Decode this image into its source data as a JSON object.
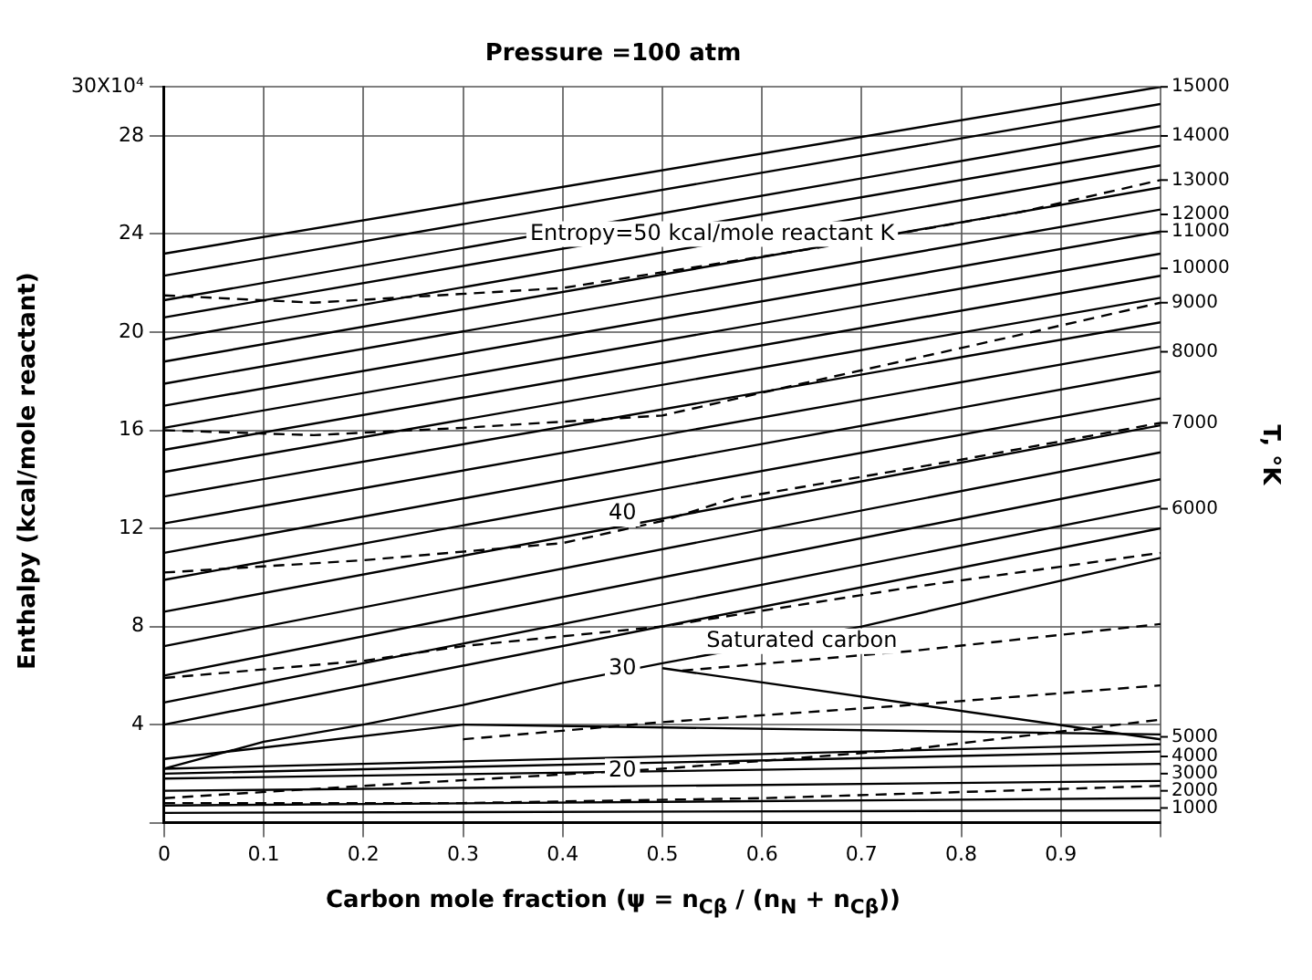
{
  "chart_data": {
    "type": "line",
    "title": "Pressure =100 atm",
    "xlabel": "Carbon mole fraction (ψ = n$_{Cβ}$ / (n$_{N}$ + n$_{Cβ}$))",
    "ylabel": "Enthalpy (kcal/mole reactant)",
    "xlim": [
      0,
      1
    ],
    "xticks": [
      0,
      0.1,
      0.2,
      0.3,
      0.4,
      0.5,
      0.6,
      0.7,
      0.8,
      0.9,
      {
        "value": 1,
        "label": null
      }
    ],
    "ylim": [
      0,
      30
    ],
    "yticks": [
      {
        "value": 0,
        "label": null
      },
      4,
      8,
      12,
      16,
      20,
      24,
      28,
      {
        "value": 30,
        "label": "30X10⁴"
      }
    ],
    "grid": true,
    "legend": false,
    "marker": "none",
    "line_style": "solid",
    "series": [
      {
        "color": "#000000",
        "x": [
          0,
          1
        ],
        "values": [
          23.2,
          30.0
        ]
      },
      {
        "color": "#000000",
        "x": [
          0,
          1
        ],
        "values": [
          22.3,
          29.3
        ]
      },
      {
        "color": "#000000",
        "x": [
          0,
          1
        ],
        "values": [
          21.3,
          28.4
        ]
      },
      {
        "color": "#000000",
        "x": [
          0,
          1
        ],
        "values": [
          20.6,
          27.6
        ]
      },
      {
        "color": "#000000",
        "x": [
          0,
          1
        ],
        "values": [
          19.7,
          26.8
        ]
      },
      {
        "color": "#000000",
        "x": [
          0,
          1
        ],
        "values": [
          18.8,
          25.9
        ]
      },
      {
        "color": "#000000",
        "x": [
          0,
          1
        ],
        "values": [
          17.9,
          25.0
        ]
      },
      {
        "color": "#000000",
        "x": [
          0,
          1
        ],
        "values": [
          17.0,
          24.1
        ]
      },
      {
        "color": "#000000",
        "x": [
          0,
          1
        ],
        "values": [
          16.1,
          23.2
        ]
      },
      {
        "color": "#000000",
        "x": [
          0,
          1
        ],
        "values": [
          15.2,
          22.3
        ]
      },
      {
        "color": "#000000",
        "x": [
          0,
          1
        ],
        "values": [
          14.3,
          21.4
        ]
      },
      {
        "color": "#000000",
        "x": [
          0,
          1
        ],
        "values": [
          13.3,
          20.4
        ]
      },
      {
        "color": "#000000",
        "x": [
          0,
          1
        ],
        "values": [
          12.2,
          19.4
        ]
      },
      {
        "color": "#000000",
        "x": [
          0,
          1
        ],
        "values": [
          11.0,
          18.4
        ]
      },
      {
        "color": "#000000",
        "x": [
          0,
          1
        ],
        "values": [
          9.9,
          17.3
        ]
      },
      {
        "color": "#000000",
        "x": [
          0,
          1
        ],
        "values": [
          8.6,
          16.2
        ]
      },
      {
        "color": "#000000",
        "x": [
          0,
          1
        ],
        "values": [
          7.2,
          15.1
        ]
      },
      {
        "color": "#000000",
        "x": [
          0,
          1
        ],
        "values": [
          6.0,
          14.0
        ]
      },
      {
        "color": "#000000",
        "x": [
          0,
          1
        ],
        "values": [
          4.9,
          12.9
        ]
      },
      {
        "color": "#000000",
        "x": [
          0,
          1
        ],
        "values": [
          4.0,
          12.0
        ]
      },
      {
        "color": "#000000",
        "x": [
          0,
          0.1,
          0.2,
          0.3,
          0.4,
          0.5,
          0.7,
          1
        ],
        "values": [
          2.2,
          3.3,
          4.0,
          4.8,
          5.7,
          6.5,
          8.0,
          10.8
        ]
      },
      {
        "color": "#000000",
        "x": [
          0.5,
          1
        ],
        "values": [
          6.3,
          3.4
        ]
      },
      {
        "color": "#000000",
        "x": [
          0,
          0.3,
          1
        ],
        "values": [
          2.6,
          4.0,
          3.6
        ]
      },
      {
        "color": "#000000",
        "x": [
          0,
          1
        ],
        "values": [
          2.2,
          3.2
        ]
      },
      {
        "color": "#000000",
        "x": [
          0,
          1
        ],
        "values": [
          2.0,
          2.9
        ]
      },
      {
        "color": "#000000",
        "x": [
          0,
          1
        ],
        "values": [
          1.8,
          2.4
        ]
      },
      {
        "color": "#000000",
        "x": [
          0,
          1
        ],
        "values": [
          1.3,
          1.7
        ]
      },
      {
        "color": "#000000",
        "x": [
          0,
          1
        ],
        "values": [
          0.7,
          1.0
        ]
      },
      {
        "color": "#000000",
        "x": [
          0,
          1
        ],
        "values": [
          0.4,
          0.5
        ]
      },
      {
        "color": "#000000",
        "line_style": "dashed",
        "x": [
          0,
          0.15,
          0.4,
          0.65,
          0.86,
          1
        ],
        "values": [
          21.5,
          21.2,
          21.8,
          23.4,
          24.9,
          26.2
        ]
      },
      {
        "color": "#000000",
        "line_style": "dashed",
        "x": [
          0,
          0.15,
          0.3,
          0.5,
          0.64,
          0.86,
          1
        ],
        "values": [
          16.0,
          15.8,
          16.1,
          16.6,
          17.9,
          19.9,
          21.2
        ]
      },
      {
        "color": "#000000",
        "line_style": "dashed",
        "x": [
          0,
          0.2,
          0.4,
          0.5,
          0.57,
          0.8,
          1
        ],
        "values": [
          10.2,
          10.7,
          11.4,
          12.3,
          13.2,
          14.8,
          16.3
        ]
      },
      {
        "color": "#000000",
        "line_style": "dashed",
        "x": [
          0,
          0.2,
          0.3,
          0.5,
          0.75,
          1
        ],
        "values": [
          5.9,
          6.6,
          7.2,
          8.0,
          9.6,
          11.0
        ]
      },
      {
        "color": "#000000",
        "line_style": "dashed",
        "x": [
          0.52,
          0.75,
          1
        ],
        "values": [
          6.2,
          7.0,
          8.1
        ]
      },
      {
        "color": "#000000",
        "line_style": "dashed",
        "x": [
          0.3,
          0.5,
          0.75,
          1
        ],
        "values": [
          3.4,
          4.1,
          4.8,
          5.6
        ]
      },
      {
        "color": "#000000",
        "line_style": "dashed",
        "x": [
          0,
          0.2,
          0.5,
          0.75,
          1
        ],
        "values": [
          1.0,
          1.5,
          2.2,
          3.0,
          4.2
        ]
      },
      {
        "color": "#000000",
        "line_style": "dashed",
        "x": [
          0,
          0.3,
          0.6,
          1
        ],
        "values": [
          0.8,
          0.8,
          1.0,
          1.5
        ]
      }
    ],
    "annotations": [
      {
        "text": "Entropy=50 kcal/mole reactant K",
        "x": 0.55,
        "y": 24
      },
      {
        "text": "40",
        "x": 0.46,
        "y": 12.6
      },
      {
        "text": "30",
        "x": 0.46,
        "y": 6.3
      },
      {
        "text": "20",
        "x": 0.46,
        "y": 2.1
      },
      {
        "text": "Saturated carbon",
        "x": 0.64,
        "y": 7.4
      },
      {
        "text": "1000",
        "x": 1,
        "y": 0.6
      },
      {
        "text": "2000",
        "x": 1,
        "y": 1.3
      },
      {
        "text": "3000",
        "x": 1,
        "y": 2.0
      },
      {
        "text": "4000",
        "x": 1,
        "y": 2.7
      },
      {
        "text": "5000",
        "x": 1,
        "y": 3.5
      },
      {
        "text": "6000",
        "x": 1,
        "y": 12.8
      },
      {
        "text": "7000",
        "x": 1,
        "y": 16.3
      },
      {
        "text": "8000",
        "x": 1,
        "y": 19.2
      },
      {
        "text": "9000",
        "x": 1,
        "y": 21.2
      },
      {
        "text": "10000",
        "x": 1,
        "y": 22.6
      },
      {
        "text": "11000",
        "x": 1,
        "y": 24.1
      },
      {
        "text": "12000",
        "x": 1,
        "y": 24.8
      },
      {
        "text": "13000",
        "x": 1,
        "y": 26.2
      },
      {
        "text": "14000",
        "x": 1,
        "y": 28.0
      },
      {
        "text": "15000",
        "x": 1,
        "y": 30
      },
      "T, °K"
    ]
  }
}
